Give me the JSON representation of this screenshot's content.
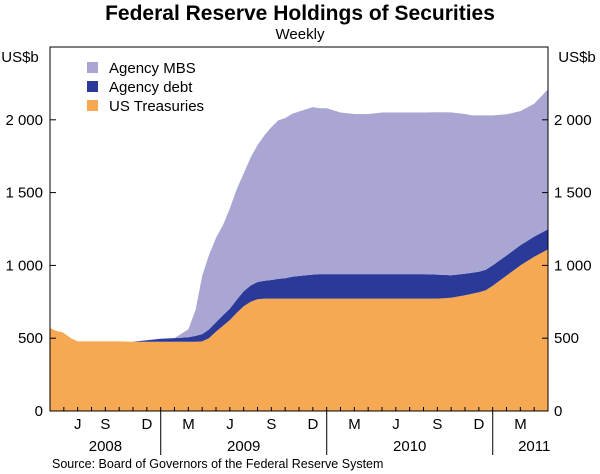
{
  "title": "Federal Reserve Holdings of Securities",
  "subtitle": "Weekly",
  "source": "Source: Board of Governors of the Federal Reserve System",
  "chart_data": {
    "type": "area",
    "stacked": true,
    "ylabel_left": "US$b",
    "ylabel_right": "US$b",
    "ylim": [
      0,
      2500
    ],
    "yticks": [
      0,
      500,
      1000,
      1500,
      2000
    ],
    "ytick_labels": [
      "0",
      "500",
      "1 000",
      "1 500",
      "2 000"
    ],
    "xlim": [
      2008.333,
      2011.333
    ],
    "month_ticks": [
      {
        "label": "J",
        "x": 2008.5
      },
      {
        "label": "S",
        "x": 2008.667
      },
      {
        "label": "D",
        "x": 2008.917
      },
      {
        "label": "M",
        "x": 2009.167
      },
      {
        "label": "J",
        "x": 2009.417
      },
      {
        "label": "S",
        "x": 2009.667
      },
      {
        "label": "D",
        "x": 2009.917
      },
      {
        "label": "M",
        "x": 2010.167
      },
      {
        "label": "J",
        "x": 2010.417
      },
      {
        "label": "S",
        "x": 2010.667
      },
      {
        "label": "D",
        "x": 2010.917
      },
      {
        "label": "M",
        "x": 2011.167
      }
    ],
    "year_labels": [
      {
        "label": "2008",
        "x": 2008.667
      },
      {
        "label": "2009",
        "x": 2009.5
      },
      {
        "label": "2010",
        "x": 2010.5
      },
      {
        "label": "2011",
        "x": 2011.25
      }
    ],
    "legend": [
      {
        "name": "Agency MBS",
        "color": "#a9a6d4"
      },
      {
        "name": "Agency debt",
        "color": "#2b3a99"
      },
      {
        "name": "US Treasuries",
        "color": "#f6a852"
      }
    ],
    "x": [
      2008.333,
      2008.37,
      2008.41,
      2008.46,
      2008.5,
      2008.58,
      2008.667,
      2008.75,
      2008.83,
      2008.917,
      2009.0,
      2009.083,
      2009.167,
      2009.21,
      2009.25,
      2009.29,
      2009.333,
      2009.375,
      2009.417,
      2009.458,
      2009.5,
      2009.542,
      2009.583,
      2009.625,
      2009.667,
      2009.708,
      2009.75,
      2009.792,
      2009.833,
      2009.875,
      2009.917,
      2009.958,
      2010.0,
      2010.083,
      2010.167,
      2010.25,
      2010.333,
      2010.417,
      2010.5,
      2010.583,
      2010.667,
      2010.75,
      2010.833,
      2010.875,
      2010.917,
      2010.958,
      2011.0,
      2011.083,
      2011.167,
      2011.25,
      2011.333
    ],
    "series": [
      {
        "name": "US Treasuries",
        "values": [
          570,
          550,
          540,
          500,
          478,
          478,
          478,
          478,
          476,
          476,
          476,
          476,
          476,
          476,
          478,
          500,
          545,
          585,
          625,
          675,
          720,
          750,
          768,
          772,
          772,
          772,
          772,
          772,
          772,
          772,
          772,
          772,
          772,
          772,
          772,
          772,
          772,
          772,
          772,
          772,
          772,
          778,
          795,
          805,
          815,
          830,
          860,
          930,
          1000,
          1060,
          1110
        ]
      },
      {
        "name": "Agency debt",
        "values": [
          0,
          0,
          0,
          0,
          0,
          0,
          0,
          0,
          0,
          10,
          20,
          25,
          30,
          40,
          50,
          60,
          65,
          72,
          78,
          90,
          102,
          112,
          118,
          122,
          128,
          135,
          140,
          150,
          155,
          160,
          165,
          168,
          168,
          168,
          168,
          168,
          168,
          168,
          168,
          168,
          165,
          155,
          147,
          145,
          142,
          140,
          140,
          138,
          138,
          138,
          138
        ]
      },
      {
        "name": "Agency MBS",
        "values": [
          0,
          0,
          0,
          0,
          0,
          0,
          0,
          0,
          0,
          0,
          0,
          0,
          55,
          180,
          400,
          510,
          580,
          620,
          690,
          760,
          810,
          880,
          940,
          1000,
          1050,
          1090,
          1100,
          1120,
          1130,
          1140,
          1150,
          1140,
          1140,
          1110,
          1100,
          1100,
          1110,
          1110,
          1110,
          1110,
          1115,
          1118,
          1098,
          1080,
          1073,
          1060,
          1030,
          970,
          922,
          912,
          962
        ]
      }
    ]
  }
}
